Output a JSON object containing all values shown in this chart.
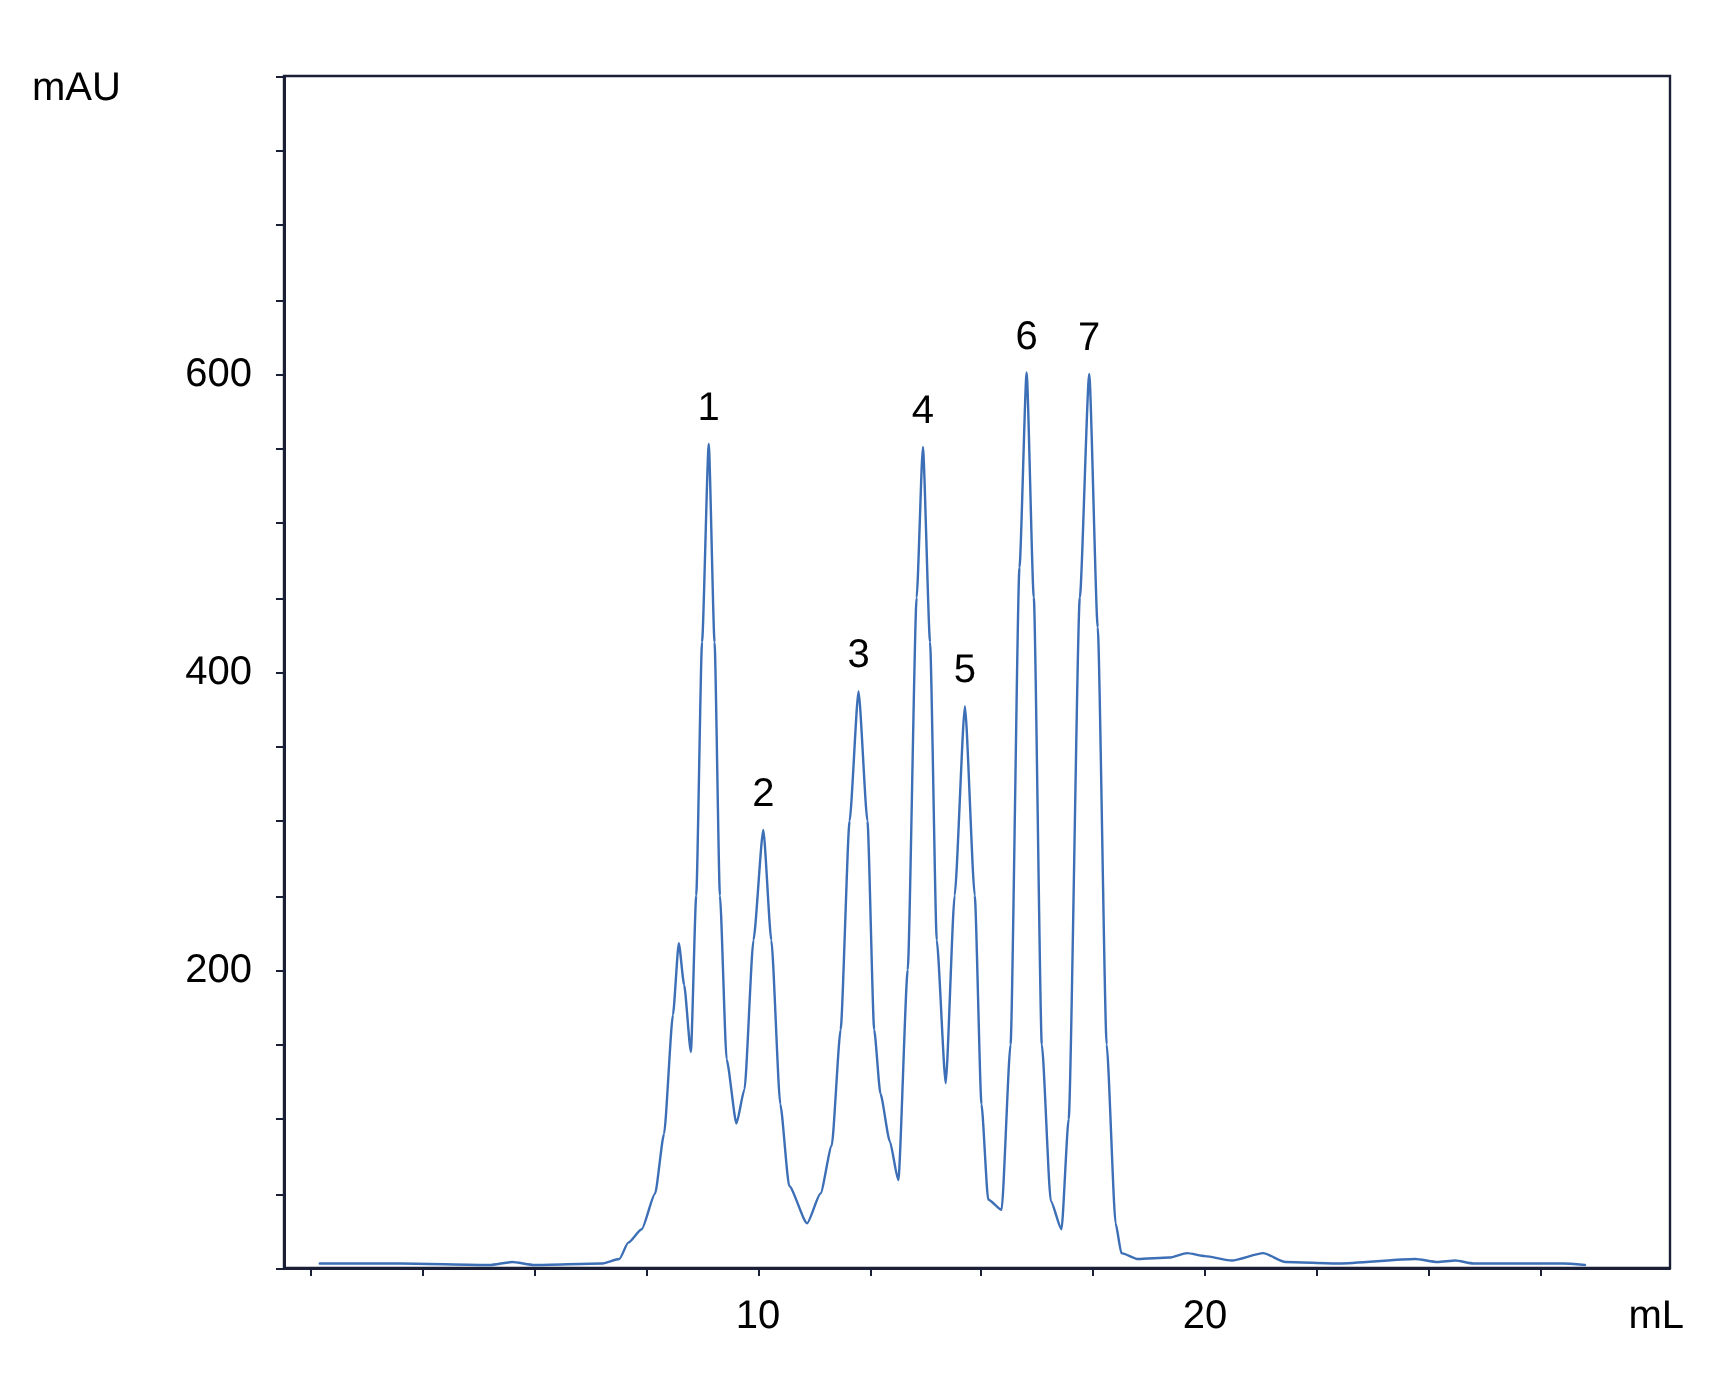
{
  "chart_data": {
    "type": "line",
    "xlabel": "mL",
    "ylabel": "mAU",
    "xlim": [
      -0.6,
      30.4
    ],
    "ylim": [
      0,
      800
    ],
    "xticks": [
      {
        "value": 0,
        "label": null
      },
      {
        "value": 2.5,
        "label": null
      },
      {
        "value": 5,
        "label": null
      },
      {
        "value": 7.5,
        "label": null
      },
      10,
      {
        "value": 12.5,
        "label": null
      },
      {
        "value": 15,
        "label": null
      },
      {
        "value": 17.5,
        "label": null
      },
      20,
      {
        "value": 22.5,
        "label": null
      },
      {
        "value": 25,
        "label": null
      },
      {
        "value": 27.5,
        "label": null
      }
    ],
    "yticks": [
      {
        "value": 0,
        "label": null
      },
      {
        "value": 50,
        "label": null
      },
      {
        "value": 100,
        "label": null
      },
      {
        "value": 150,
        "label": null
      },
      200,
      {
        "value": 250,
        "label": null
      },
      {
        "value": 300,
        "label": null
      },
      {
        "value": 350,
        "label": null
      },
      400,
      {
        "value": 450,
        "label": null
      },
      {
        "value": 500,
        "label": null
      },
      {
        "value": 550,
        "label": null
      },
      600,
      {
        "value": 650,
        "label": null
      },
      {
        "value": 700,
        "label": null
      },
      {
        "value": 750,
        "label": null
      },
      {
        "value": 800,
        "label": null
      }
    ],
    "grid": false,
    "marker": "none",
    "line_style": "solid",
    "annotations": [
      {
        "text": "1",
        "x": 8.9,
        "y": 553
      },
      {
        "text": "2",
        "x": 10.12,
        "y": 294
      },
      {
        "text": "3",
        "x": 12.25,
        "y": 387
      },
      {
        "text": "4",
        "x": 13.69,
        "y": 551
      },
      {
        "text": "5",
        "x": 14.63,
        "y": 377
      },
      {
        "text": "6",
        "x": 16.01,
        "y": 601
      },
      {
        "text": "7",
        "x": 17.41,
        "y": 600
      }
    ],
    "series": [
      {
        "color": "#3c6fb6",
        "x": [
          0.2,
          2,
          4,
          4.5,
          5,
          6.5,
          6.9,
          7.1,
          7.4,
          7.7,
          7.9,
          8.1,
          8.23,
          8.35,
          8.5,
          8.62,
          8.75,
          8.9,
          9.03,
          9.15,
          9.3,
          9.52,
          9.7,
          9.9,
          10.12,
          10.3,
          10.5,
          10.7,
          11.1,
          11.4,
          11.65,
          11.85,
          12.05,
          12.25,
          12.45,
          12.6,
          12.74,
          12.95,
          13.14,
          13.35,
          13.55,
          13.69,
          13.85,
          14.0,
          14.2,
          14.4,
          14.63,
          14.85,
          15.0,
          15.15,
          15.45,
          15.65,
          15.85,
          16.01,
          16.17,
          16.35,
          16.55,
          16.79,
          16.95,
          17.2,
          17.41,
          17.6,
          17.8,
          18.0,
          18.13,
          18.5,
          19.2,
          19.6,
          20.0,
          20.6,
          21.3,
          21.8,
          23,
          24.7,
          25.2,
          25.6,
          26,
          28,
          28.5
        ],
        "values": [
          3,
          3,
          2,
          4,
          2,
          3,
          6,
          17,
          26,
          50,
          90,
          170,
          218,
          190,
          145,
          250,
          420,
          553,
          420,
          250,
          140,
          97,
          120,
          220,
          294,
          220,
          110,
          55,
          30,
          50,
          82,
          160,
          300,
          387,
          300,
          160,
          117,
          85,
          59,
          200,
          450,
          551,
          420,
          220,
          124,
          250,
          377,
          250,
          110,
          46,
          39,
          150,
          470,
          601,
          450,
          150,
          45,
          26,
          100,
          450,
          600,
          430,
          150,
          30,
          10,
          6,
          7,
          10,
          8,
          5,
          10,
          4,
          3,
          6,
          4,
          5,
          3,
          3,
          2
        ]
      }
    ]
  }
}
